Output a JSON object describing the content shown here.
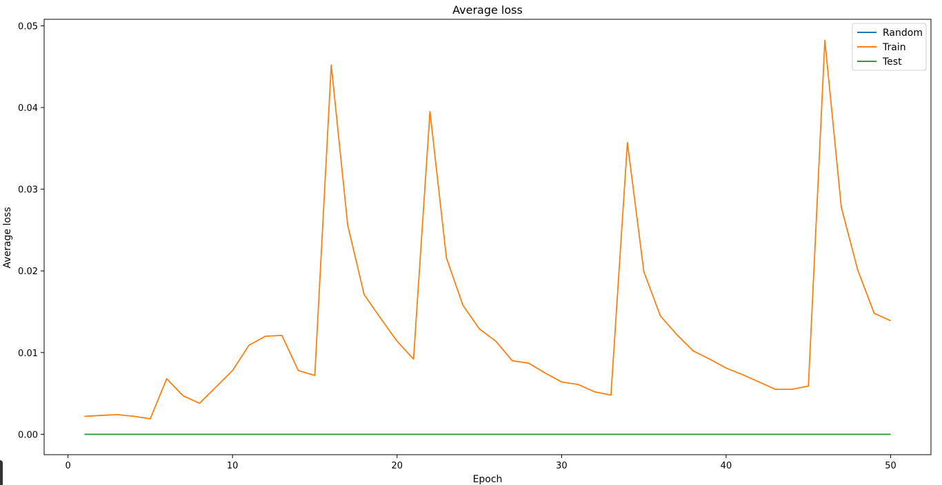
{
  "chart_data": {
    "type": "line",
    "title": "Average loss",
    "xlabel": "Epoch",
    "ylabel": "Average loss",
    "xlim": [
      -1.45,
      52.45
    ],
    "ylim": [
      -0.0025,
      0.0508
    ],
    "xticks": [
      0,
      10,
      20,
      30,
      40,
      50
    ],
    "xtick_labels": [
      "0",
      "10",
      "20",
      "30",
      "40",
      "50"
    ],
    "yticks": [
      0.0,
      0.01,
      0.02,
      0.03,
      0.04,
      0.05
    ],
    "ytick_labels": [
      "0.00",
      "0.01",
      "0.02",
      "0.03",
      "0.04",
      "0.05"
    ],
    "grid": false,
    "legend": "top-right",
    "x": [
      1,
      2,
      3,
      4,
      5,
      6,
      7,
      8,
      9,
      10,
      11,
      12,
      13,
      14,
      15,
      16,
      17,
      18,
      19,
      20,
      21,
      22,
      23,
      24,
      25,
      26,
      27,
      28,
      29,
      30,
      31,
      32,
      33,
      34,
      35,
      36,
      37,
      38,
      39,
      40,
      41,
      42,
      43,
      44,
      45,
      46,
      47,
      48,
      49,
      50
    ],
    "series": [
      {
        "name": "Random",
        "color": "#1f77b4",
        "values": [
          0,
          0,
          0,
          0,
          0,
          0,
          0,
          0,
          0,
          0,
          0,
          0,
          0,
          0,
          0,
          0,
          0,
          0,
          0,
          0,
          0,
          0,
          0,
          0,
          0,
          0,
          0,
          0,
          0,
          0,
          0,
          0,
          0,
          0,
          0,
          0,
          0,
          0,
          0,
          0,
          0,
          0,
          0,
          0,
          0,
          0,
          0,
          0,
          0,
          0
        ]
      },
      {
        "name": "Train",
        "color": "#ff7f0e",
        "values": [
          0.0022,
          0.0023,
          0.0024,
          0.0022,
          0.0019,
          0.0068,
          0.0047,
          0.0038,
          0.0058,
          0.0078,
          0.0109,
          0.012,
          0.0121,
          0.0078,
          0.0072,
          0.0452,
          0.0256,
          0.0171,
          0.0142,
          0.0114,
          0.0092,
          0.0395,
          0.0216,
          0.0158,
          0.0129,
          0.0114,
          0.009,
          0.0087,
          0.0075,
          0.0064,
          0.0061,
          0.0052,
          0.0048,
          0.0357,
          0.0199,
          0.0145,
          0.0122,
          0.0102,
          0.0092,
          0.0081,
          0.0073,
          0.0064,
          0.0055,
          0.0055,
          0.0059,
          0.0482,
          0.0278,
          0.0201,
          0.0148,
          0.0139
        ]
      },
      {
        "name": "Test",
        "color": "#2ca02c",
        "values": [
          0,
          0,
          0,
          0,
          0,
          0,
          0,
          0,
          0,
          0,
          0,
          0,
          0,
          0,
          0,
          0,
          0,
          0,
          0,
          0,
          0,
          0,
          0,
          0,
          0,
          0,
          0,
          0,
          0,
          0,
          0,
          0,
          0,
          0,
          0,
          0,
          0,
          0,
          0,
          0,
          0,
          0,
          0,
          0,
          0,
          0,
          0,
          0,
          0,
          0
        ]
      }
    ]
  }
}
